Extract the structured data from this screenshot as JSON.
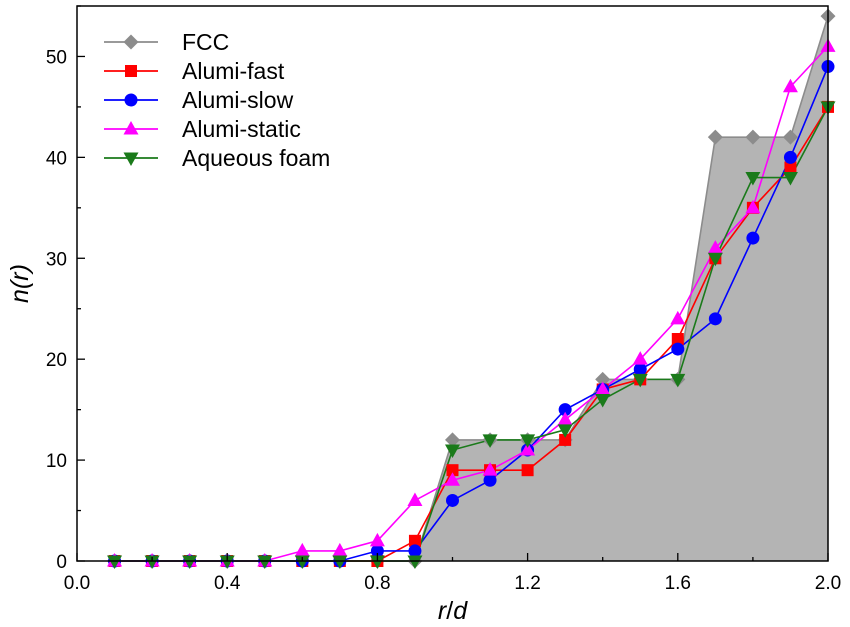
{
  "chart_data": {
    "type": "line",
    "title": "",
    "xlabel_parts": [
      "r",
      "/",
      "d"
    ],
    "ylabel_parts": [
      "n(",
      "r",
      ")"
    ],
    "xlim": [
      0.0,
      2.0
    ],
    "ylim": [
      0,
      55
    ],
    "x_ticks": [
      0.0,
      0.4,
      0.8,
      1.2,
      1.6,
      2.0
    ],
    "x_tick_labels": [
      "0.0",
      "0.4",
      "0.8",
      "1.2",
      "1.6",
      "2.0"
    ],
    "y_ticks": [
      0,
      10,
      20,
      30,
      40,
      50
    ],
    "y_tick_labels": [
      "0",
      "10",
      "20",
      "30",
      "40",
      "50"
    ],
    "grid": false,
    "legend_position": "top-left",
    "x": [
      0.1,
      0.2,
      0.3,
      0.4,
      0.5,
      0.6,
      0.7,
      0.8,
      0.9,
      1.0,
      1.1,
      1.2,
      1.3,
      1.4,
      1.5,
      1.6,
      1.7,
      1.8,
      1.9,
      2.0
    ],
    "series": [
      {
        "name": "FCC",
        "color": "#8c8c8c",
        "marker": "diamond",
        "area": true,
        "area_color": "#b4b4b4",
        "values": [
          0,
          0,
          0,
          0,
          0,
          0,
          0,
          0,
          0,
          12,
          12,
          12,
          12,
          18,
          18,
          18,
          42,
          42,
          42,
          54
        ]
      },
      {
        "name": "Alumi-fast",
        "color": "#ff0000",
        "marker": "square",
        "values": [
          0,
          0,
          0,
          0,
          0,
          0,
          0,
          0,
          2,
          9,
          9,
          9,
          12,
          17,
          18,
          22,
          30,
          35,
          39,
          45
        ]
      },
      {
        "name": "Alumi-slow",
        "color": "#0000ff",
        "marker": "circle",
        "values": [
          0,
          0,
          0,
          0,
          0,
          0,
          0,
          1,
          1,
          6,
          8,
          11,
          15,
          17,
          19,
          21,
          24,
          32,
          40,
          49
        ]
      },
      {
        "name": "Alumi-static",
        "color": "#ff00ff",
        "marker": "triangle-up",
        "values": [
          0,
          0,
          0,
          0,
          0,
          1,
          1,
          2,
          6,
          8,
          9,
          11,
          14,
          17,
          20,
          24,
          31,
          35,
          47,
          51
        ]
      },
      {
        "name": "Aqueous foam",
        "color": "#1a7a1a",
        "marker": "triangle-down",
        "values": [
          0,
          0,
          0,
          0,
          0,
          0,
          0,
          0,
          0,
          11,
          12,
          12,
          13,
          16,
          18,
          18,
          30,
          38,
          38,
          45
        ]
      }
    ]
  }
}
